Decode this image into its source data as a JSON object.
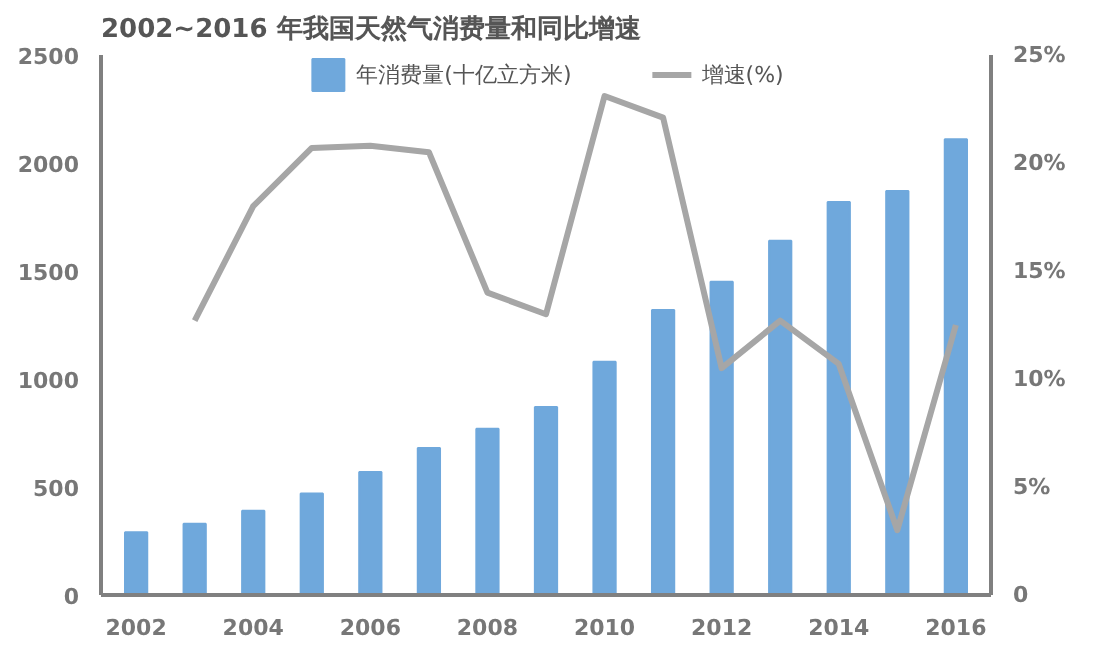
{
  "chart_data": {
    "type": "bar",
    "title": "2002~2016 年我国天然气消费量和同比增速",
    "x": [
      2002,
      2003,
      2004,
      2005,
      2006,
      2007,
      2008,
      2009,
      2010,
      2011,
      2012,
      2013,
      2014,
      2015,
      2016
    ],
    "series": [
      {
        "name": "年消费量(十亿立方米)",
        "color": "#6fa8dc",
        "values": [
          290,
          330,
          390,
          470,
          570,
          680,
          770,
          870,
          1080,
          1320,
          1450,
          1640,
          1820,
          1870,
          2110
        ]
      },
      {
        "name": "增速(%)",
        "type": "line",
        "axis": "y2",
        "color": "#a6a6a6",
        "values": [
          null,
          12.7,
          18.0,
          20.7,
          20.8,
          20.5,
          14.0,
          13.0,
          23.1,
          22.1,
          10.5,
          12.7,
          10.7,
          3.0,
          12.5
        ]
      }
    ],
    "xlim": [
      2001.4,
      2016.6
    ],
    "xticks": [
      2002,
      2004,
      2006,
      2008,
      2010,
      2012,
      2014,
      2016
    ],
    "ylim": [
      0,
      2500
    ],
    "yticks": [
      0,
      500,
      1000,
      1500,
      2000,
      2500
    ],
    "y2lim": [
      0,
      25
    ],
    "y2ticks": [
      {
        "value": 0,
        "label": "0"
      },
      {
        "value": 5,
        "label": "5%"
      },
      {
        "value": 10,
        "label": "10%"
      },
      {
        "value": 15,
        "label": "15%"
      },
      {
        "value": 20,
        "label": "20%"
      },
      {
        "value": 25,
        "label": "25%"
      }
    ],
    "legend": "top",
    "grid": false
  }
}
